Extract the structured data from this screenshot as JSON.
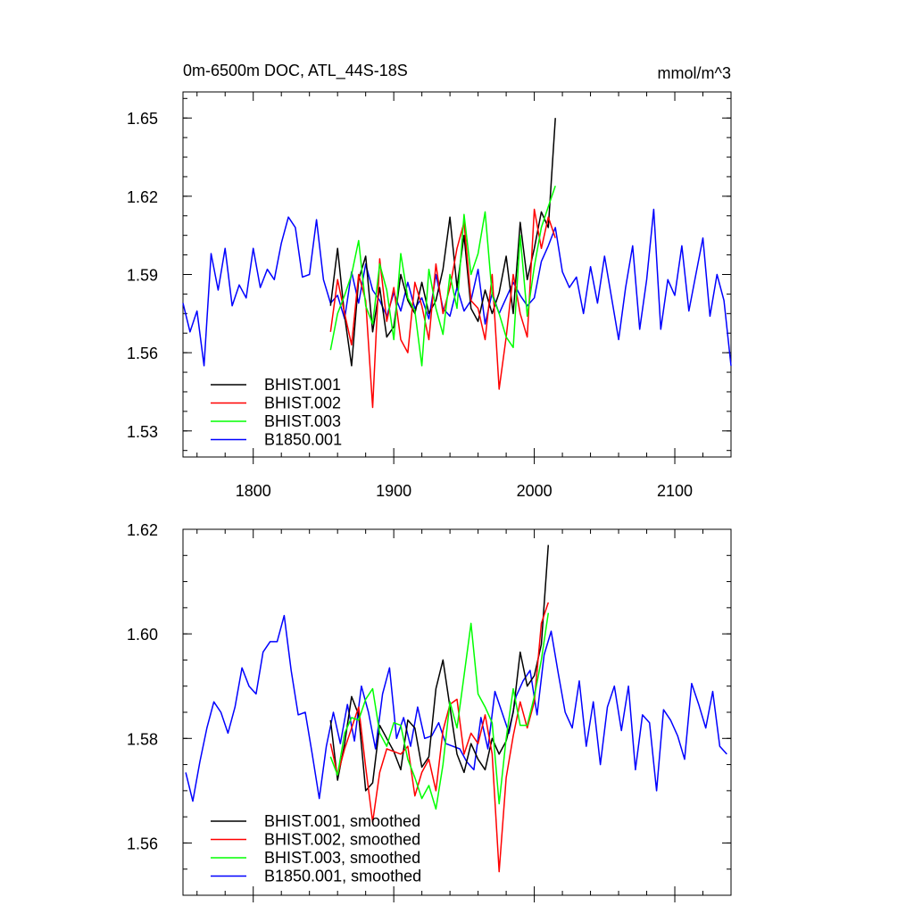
{
  "chart_data": [
    {
      "type": "line",
      "title": "0m-6500m DOC, ATL_44S-18S",
      "units": "mmol/m^3",
      "xlim": [
        1750,
        2140
      ],
      "ylim": [
        1.52,
        1.66
      ],
      "xticks": [
        1800,
        1900,
        2000,
        2100
      ],
      "xtick_labels": [
        "1800",
        "1900",
        "2000",
        "2100"
      ],
      "yticks": [
        1.53,
        1.56,
        1.59,
        1.62,
        1.65
      ],
      "ytick_labels": [
        "1.53",
        "1.56",
        "1.59",
        "1.62",
        "1.65"
      ],
      "grid": false,
      "legend": "bottom-left",
      "series": [
        {
          "name": "BHIST.001",
          "color": "#000000",
          "x": [
            1855,
            1860,
            1865,
            1870,
            1875,
            1880,
            1885,
            1890,
            1895,
            1900,
            1905,
            1910,
            1915,
            1920,
            1925,
            1930,
            1935,
            1940,
            1945,
            1950,
            1955,
            1960,
            1965,
            1970,
            1975,
            1980,
            1985,
            1990,
            1995,
            2000,
            2005,
            2010,
            2015
          ],
          "y": [
            1.578,
            1.6,
            1.574,
            1.555,
            1.588,
            1.597,
            1.568,
            1.585,
            1.566,
            1.57,
            1.59,
            1.58,
            1.575,
            1.587,
            1.575,
            1.58,
            1.592,
            1.612,
            1.585,
            1.605,
            1.577,
            1.572,
            1.584,
            1.575,
            1.583,
            1.597,
            1.575,
            1.61,
            1.588,
            1.6,
            1.614,
            1.608,
            1.65
          ]
        },
        {
          "name": "BHIST.002",
          "color": "#ff0000",
          "x": [
            1855,
            1860,
            1865,
            1870,
            1875,
            1880,
            1885,
            1890,
            1895,
            1900,
            1905,
            1910,
            1915,
            1920,
            1925,
            1930,
            1935,
            1940,
            1945,
            1950,
            1955,
            1960,
            1965,
            1970,
            1975,
            1980,
            1985,
            1990,
            1995,
            2000,
            2005,
            2010,
            2015
          ],
          "y": [
            1.568,
            1.588,
            1.575,
            1.563,
            1.59,
            1.58,
            1.539,
            1.596,
            1.572,
            1.585,
            1.565,
            1.56,
            1.587,
            1.578,
            1.565,
            1.594,
            1.575,
            1.585,
            1.6,
            1.61,
            1.58,
            1.577,
            1.565,
            1.59,
            1.546,
            1.566,
            1.59,
            1.575,
            1.566,
            1.615,
            1.6,
            1.612,
            1.604
          ]
        },
        {
          "name": "BHIST.003",
          "color": "#00ff00",
          "x": [
            1855,
            1860,
            1865,
            1870,
            1875,
            1880,
            1885,
            1890,
            1895,
            1900,
            1905,
            1910,
            1915,
            1920,
            1925,
            1930,
            1935,
            1940,
            1945,
            1950,
            1955,
            1960,
            1965,
            1970,
            1975,
            1980,
            1985,
            1990,
            1995,
            2000,
            2005,
            2010,
            2015
          ],
          "y": [
            1.561,
            1.575,
            1.582,
            1.59,
            1.603,
            1.578,
            1.571,
            1.594,
            1.584,
            1.565,
            1.598,
            1.581,
            1.576,
            1.555,
            1.592,
            1.577,
            1.567,
            1.59,
            1.577,
            1.613,
            1.59,
            1.598,
            1.614,
            1.582,
            1.575,
            1.566,
            1.562,
            1.605,
            1.574,
            1.593,
            1.608,
            1.616,
            1.624
          ]
        },
        {
          "name": "B1850.001",
          "color": "#0000ff",
          "x": [
            1750,
            1755,
            1760,
            1765,
            1770,
            1775,
            1780,
            1785,
            1790,
            1795,
            1800,
            1805,
            1810,
            1815,
            1820,
            1825,
            1830,
            1835,
            1840,
            1845,
            1850,
            1855,
            1860,
            1865,
            1870,
            1875,
            1880,
            1885,
            1890,
            1895,
            1900,
            1905,
            1910,
            1915,
            1920,
            1925,
            1930,
            1935,
            1940,
            1945,
            1950,
            1955,
            1960,
            1965,
            1970,
            1975,
            1980,
            1985,
            1990,
            1995,
            2000,
            2005,
            2010,
            2015,
            2020,
            2025,
            2030,
            2035,
            2040,
            2045,
            2050,
            2055,
            2060,
            2065,
            2070,
            2075,
            2080,
            2085,
            2090,
            2095,
            2100,
            2105,
            2110,
            2115,
            2120,
            2125,
            2130,
            2135,
            2140
          ],
          "y": [
            1.579,
            1.568,
            1.576,
            1.555,
            1.598,
            1.584,
            1.6,
            1.578,
            1.586,
            1.581,
            1.6,
            1.585,
            1.592,
            1.588,
            1.602,
            1.612,
            1.608,
            1.589,
            1.59,
            1.611,
            1.588,
            1.579,
            1.582,
            1.573,
            1.591,
            1.579,
            1.594,
            1.584,
            1.58,
            1.574,
            1.583,
            1.576,
            1.587,
            1.577,
            1.581,
            1.573,
            1.59,
            1.577,
            1.574,
            1.585,
            1.576,
            1.58,
            1.592,
            1.571,
            1.583,
            1.575,
            1.581,
            1.587,
            1.582,
            1.578,
            1.581,
            1.595,
            1.601,
            1.608,
            1.591,
            1.585,
            1.589,
            1.575,
            1.593,
            1.579,
            1.597,
            1.581,
            1.565,
            1.585,
            1.601,
            1.569,
            1.588,
            1.615,
            1.569,
            1.588,
            1.582,
            1.601,
            1.576,
            1.59,
            1.604,
            1.574,
            1.59,
            1.58,
            1.555
          ]
        }
      ]
    },
    {
      "type": "line",
      "title": "",
      "xlim": [
        1750,
        2140
      ],
      "ylim": [
        1.55,
        1.62
      ],
      "xticks": [
        1800,
        1900,
        2000,
        2100
      ],
      "xtick_labels": [],
      "yticks": [
        1.56,
        1.58,
        1.6,
        1.62
      ],
      "ytick_labels": [
        "1.56",
        "1.58",
        "1.60",
        "1.62"
      ],
      "grid": false,
      "legend": "bottom-left",
      "series": [
        {
          "name": "BHIST.001, smoothed",
          "color": "#000000",
          "x": [
            1855,
            1860,
            1865,
            1870,
            1875,
            1880,
            1885,
            1890,
            1895,
            1900,
            1905,
            1910,
            1915,
            1920,
            1925,
            1930,
            1935,
            1940,
            1945,
            1950,
            1955,
            1960,
            1965,
            1970,
            1975,
            1980,
            1985,
            1990,
            1995,
            2000,
            2005,
            2010
          ],
          "y": [
            1.5835,
            1.572,
            1.579,
            1.588,
            1.5845,
            1.57,
            1.5715,
            1.5825,
            1.58,
            1.5775,
            1.574,
            1.5835,
            1.582,
            1.5745,
            1.5765,
            1.5895,
            1.595,
            1.586,
            1.577,
            1.5735,
            1.579,
            1.576,
            1.574,
            1.58,
            1.577,
            1.5795,
            1.585,
            1.5965,
            1.59,
            1.592,
            1.598,
            1.617
          ]
        },
        {
          "name": "BHIST.002, smoothed",
          "color": "#ff0000",
          "x": [
            1855,
            1860,
            1865,
            1870,
            1875,
            1880,
            1885,
            1890,
            1895,
            1900,
            1905,
            1910,
            1915,
            1920,
            1925,
            1930,
            1935,
            1940,
            1945,
            1950,
            1955,
            1960,
            1965,
            1970,
            1975,
            1980,
            1985,
            1990,
            1995,
            2000,
            2005,
            2010
          ],
          "y": [
            1.579,
            1.573,
            1.578,
            1.582,
            1.586,
            1.5745,
            1.564,
            1.5735,
            1.578,
            1.5775,
            1.577,
            1.5785,
            1.569,
            1.5735,
            1.576,
            1.57,
            1.5815,
            1.5865,
            1.5875,
            1.577,
            1.581,
            1.579,
            1.5845,
            1.577,
            1.5545,
            1.5725,
            1.5805,
            1.587,
            1.582,
            1.587,
            1.602,
            1.606
          ]
        },
        {
          "name": "BHIST.003, smoothed",
          "color": "#00ff00",
          "x": [
            1855,
            1860,
            1865,
            1870,
            1875,
            1880,
            1885,
            1890,
            1895,
            1900,
            1905,
            1910,
            1915,
            1920,
            1925,
            1930,
            1935,
            1940,
            1945,
            1950,
            1955,
            1960,
            1965,
            1970,
            1975,
            1980,
            1985,
            1990,
            1995,
            2000,
            2005,
            2010
          ],
          "y": [
            1.5765,
            1.573,
            1.581,
            1.584,
            1.5835,
            1.5875,
            1.5895,
            1.581,
            1.5785,
            1.583,
            1.5825,
            1.576,
            1.5725,
            1.5685,
            1.571,
            1.5665,
            1.575,
            1.587,
            1.582,
            1.592,
            1.602,
            1.5885,
            1.586,
            1.583,
            1.5675,
            1.58,
            1.5895,
            1.5825,
            1.5825,
            1.588,
            1.595,
            1.604
          ]
        },
        {
          "name": "B1850.001, smoothed",
          "color": "#0000ff",
          "x": [
            1752,
            1757,
            1762,
            1767,
            1772,
            1777,
            1782,
            1787,
            1792,
            1797,
            1802,
            1807,
            1812,
            1817,
            1822,
            1827,
            1832,
            1837,
            1842,
            1847,
            1852,
            1857,
            1862,
            1867,
            1872,
            1877,
            1882,
            1887,
            1892,
            1897,
            1902,
            1907,
            1912,
            1917,
            1922,
            1927,
            1932,
            1937,
            1942,
            1947,
            1952,
            1957,
            1962,
            1967,
            1972,
            1977,
            1982,
            1987,
            1992,
            1997,
            2002,
            2007,
            2012,
            2017,
            2022,
            2027,
            2032,
            2037,
            2042,
            2047,
            2052,
            2057,
            2062,
            2067,
            2072,
            2077,
            2082,
            2087,
            2092,
            2097,
            2102,
            2107,
            2112,
            2117,
            2122,
            2127,
            2132,
            2137
          ],
          "y": [
            1.5735,
            1.568,
            1.5755,
            1.582,
            1.587,
            1.585,
            1.581,
            1.586,
            1.5935,
            1.59,
            1.5885,
            1.5965,
            1.5985,
            1.5985,
            1.6035,
            1.593,
            1.5845,
            1.585,
            1.577,
            1.5685,
            1.5785,
            1.585,
            1.579,
            1.5865,
            1.5795,
            1.59,
            1.585,
            1.578,
            1.5885,
            1.5935,
            1.58,
            1.584,
            1.5785,
            1.586,
            1.58,
            1.5805,
            1.583,
            1.579,
            1.5785,
            1.578,
            1.5755,
            1.574,
            1.584,
            1.578,
            1.589,
            1.585,
            1.581,
            1.588,
            1.591,
            1.593,
            1.5845,
            1.596,
            1.6005,
            1.5925,
            1.585,
            1.582,
            1.591,
            1.5785,
            1.587,
            1.575,
            1.586,
            1.59,
            1.5815,
            1.59,
            1.574,
            1.5845,
            1.583,
            1.57,
            1.5855,
            1.5835,
            1.5805,
            1.576,
            1.5905,
            1.5865,
            1.582,
            1.589,
            1.5785,
            1.577
          ]
        }
      ]
    }
  ]
}
